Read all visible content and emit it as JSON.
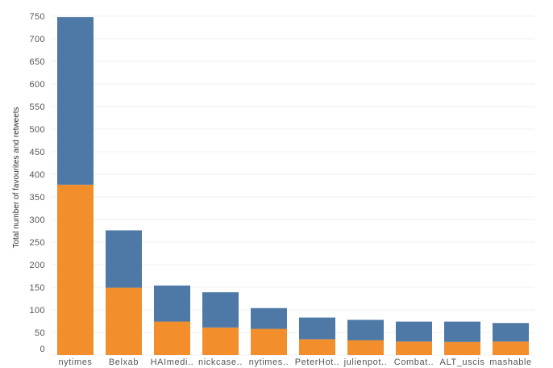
{
  "chart_data": {
    "type": "bar",
    "stacked": true,
    "title": "",
    "xlabel": "",
    "ylabel": "Total number of favourites and retweets",
    "ylim": [
      0,
      750
    ],
    "yticks": [
      0,
      50,
      100,
      150,
      200,
      250,
      300,
      350,
      400,
      450,
      500,
      550,
      600,
      650,
      700,
      750
    ],
    "grid": true,
    "categories": [
      "nytimes",
      "Belxab",
      "HAImedi..",
      "nickcase..",
      "nytimes..",
      "PeterHot..",
      "julienpot..",
      "Combat..",
      "ALT_uscis",
      "mashable"
    ],
    "series": [
      {
        "color": "#f28e2b",
        "values": [
          377,
          149,
          74,
          61,
          58,
          35,
          33,
          30,
          29,
          30
        ]
      },
      {
        "color": "#4e79a7",
        "values": [
          371,
          127,
          80,
          78,
          46,
          48,
          45,
          44,
          45,
          41
        ]
      }
    ]
  }
}
